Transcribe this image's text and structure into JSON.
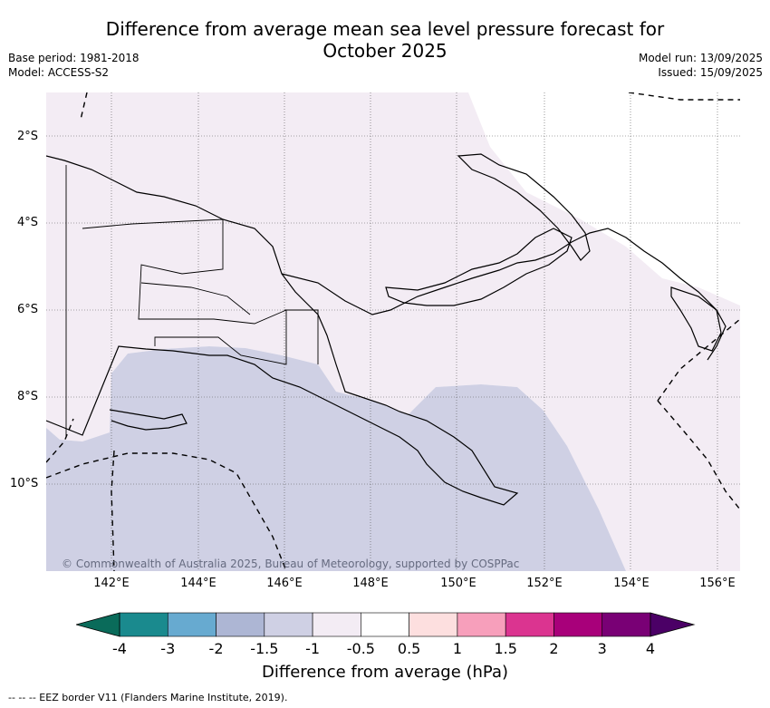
{
  "title_line1": "Difference from average mean sea level pressure forecast for",
  "title_line2": "October 2025",
  "base_period": "Base period: 1981-2018",
  "model": "Model: ACCESS-S2",
  "model_run": "Model run: 13/09/2025",
  "issued": "Issued: 15/09/2025",
  "copyright": "© Commonwealth of Australia 2025, Bureau of Meteorology, supported by COSPPac",
  "latitude_labels": [
    "2°S",
    "4°S",
    "6°S",
    "8°S",
    "10°S"
  ],
  "longitude_labels": [
    "142°E",
    "144°E",
    "146°E",
    "148°E",
    "150°E",
    "152°E",
    "154°E",
    "156°E"
  ],
  "legend": {
    "label": "Difference from average (hPa)",
    "ticks": [
      "-4",
      "-3",
      "-2",
      "-1.5",
      "-1",
      "-0.5",
      "0.5",
      "1",
      "1.5",
      "2",
      "3",
      "4"
    ],
    "colors": [
      "#1a8a8e",
      "#67aad0",
      "#adb6d4",
      "#cfd0e4",
      "#f3ecf4",
      "#ffffff",
      "#fddfdf",
      "#f79fbb",
      "#db3490",
      "#a8007a",
      "#790075"
    ],
    "extend_low_color": "#0a6b5a",
    "extend_high_color": "#4b0066"
  },
  "shading": {
    "slightly_below_color": "#cfd0e4",
    "near_normal_color": "#f3ecf4"
  },
  "footer_note": "--  --  -- EEZ border V11 (Flanders Marine Institute, 2019)."
}
